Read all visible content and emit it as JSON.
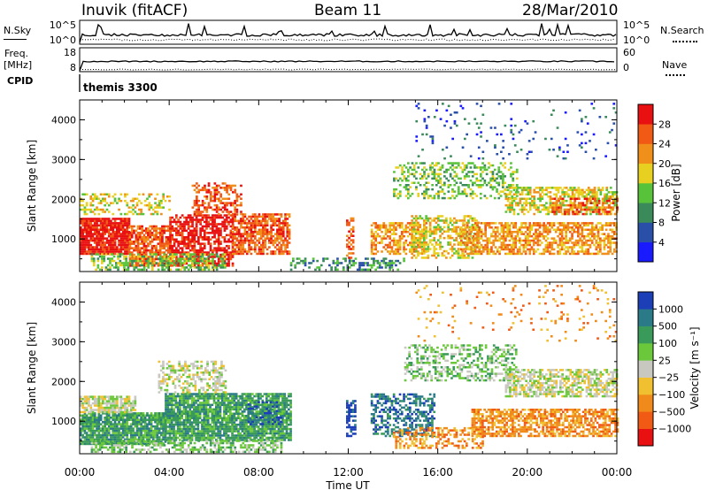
{
  "header": {
    "station": "Inuvik (fitACF)",
    "beam": "Beam 11",
    "date": "28/Mar/2010"
  },
  "strips": {
    "nsky_label": "N.Sky",
    "nsky_ticks": [
      "10^5",
      "10^0"
    ],
    "nsearch_label": "N.Search",
    "nsearch_ticks": [
      "10^5",
      "10^0"
    ],
    "freq_label": "Freq.",
    "freq_unit": "[MHz]",
    "freq_ticks": [
      "18",
      "8"
    ],
    "nave_label": "Nave",
    "nave_ticks": [
      "60",
      "0"
    ],
    "cpid_label": "CPID",
    "cpid_value": "themis 3300"
  },
  "chart_data": [
    {
      "type": "heatmap",
      "title": "",
      "xlabel": "Time UT",
      "ylabel": "Slant Range [km]",
      "xlim": [
        0,
        24
      ],
      "ylim": [
        180,
        4500
      ],
      "x_tick_labels": [
        "00:00",
        "04:00",
        "08:00",
        "12:00",
        "16:00",
        "20:00",
        "00:00"
      ],
      "x_tick_values": [
        0,
        4,
        8,
        12,
        16,
        20,
        24
      ],
      "y_tick_values": [
        1000,
        2000,
        3000,
        4000
      ],
      "colorbar": {
        "label": "Power [dB]",
        "levels": [
          4,
          8,
          12,
          16,
          20,
          24,
          28
        ],
        "colors": [
          "#1a1aff",
          "#2a4fa8",
          "#3a8a5a",
          "#58c33a",
          "#e8d020",
          "#f0901a",
          "#f05a14",
          "#e81010"
        ],
        "ticks": [
          "4",
          "8",
          "12",
          "16",
          "20",
          "24",
          "28"
        ]
      },
      "regions": [
        {
          "t": [
            0.0,
            2.2
          ],
          "r": [
            600,
            1500
          ],
          "level": 7,
          "density": 0.9
        },
        {
          "t": [
            2.2,
            4.0
          ],
          "r": [
            300,
            1300
          ],
          "level": 6,
          "density": 0.75
        },
        {
          "t": [
            4.0,
            6.8
          ],
          "r": [
            300,
            1600
          ],
          "level": 7,
          "density": 0.7
        },
        {
          "t": [
            5.0,
            7.2
          ],
          "r": [
            1600,
            2400
          ],
          "level": 6,
          "density": 0.45
        },
        {
          "t": [
            6.8,
            9.4
          ],
          "r": [
            600,
            1600
          ],
          "level": 6,
          "density": 0.7
        },
        {
          "t": [
            0.0,
            4.0
          ],
          "r": [
            1600,
            2100
          ],
          "level": 4,
          "density": 0.35
        },
        {
          "t": [
            0.5,
            6.5
          ],
          "r": [
            200,
            600
          ],
          "level": 3,
          "density": 0.5
        },
        {
          "t": [
            9.4,
            14.5
          ],
          "r": [
            200,
            500
          ],
          "level": 2,
          "density": 0.35
        },
        {
          "t": [
            11.9,
            12.2
          ],
          "r": [
            500,
            1500
          ],
          "level": 6,
          "density": 0.5
        },
        {
          "t": [
            13.0,
            15.5
          ],
          "r": [
            600,
            1400
          ],
          "level": 5,
          "density": 0.55
        },
        {
          "t": [
            14.8,
            17.8
          ],
          "r": [
            500,
            1600
          ],
          "level": 4,
          "density": 0.5
        },
        {
          "t": [
            14.0,
            19.5
          ],
          "r": [
            2000,
            2900
          ],
          "level": 3,
          "density": 0.35
        },
        {
          "t": [
            17.0,
            24.0
          ],
          "r": [
            600,
            1400
          ],
          "level": 5,
          "density": 0.6
        },
        {
          "t": [
            19.0,
            24.0
          ],
          "r": [
            1600,
            2300
          ],
          "level": 4,
          "density": 0.55
        },
        {
          "t": [
            21.0,
            24.0
          ],
          "r": [
            1600,
            2000
          ],
          "level": 6,
          "density": 0.45
        },
        {
          "t": [
            15.0,
            24.0
          ],
          "r": [
            3000,
            4400
          ],
          "level": 1,
          "density": 0.05
        }
      ]
    },
    {
      "type": "heatmap",
      "title": "",
      "xlabel": "Time UT",
      "ylabel": "Slant Range [km]",
      "xlim": [
        0,
        24
      ],
      "ylim": [
        180,
        4500
      ],
      "x_tick_labels": [
        "00:00",
        "04:00",
        "08:00",
        "12:00",
        "16:00",
        "20:00",
        "00:00"
      ],
      "x_tick_values": [
        0,
        4,
        8,
        12,
        16,
        20,
        24
      ],
      "y_tick_values": [
        1000,
        2000,
        3000,
        4000
      ],
      "colorbar": {
        "label": "Velocity [m s⁻¹]",
        "levels": [
          1000,
          500,
          100,
          25,
          -25,
          -100,
          -500,
          -1000
        ],
        "colors": [
          "#1c3fb8",
          "#2a7a88",
          "#3a9a5a",
          "#6ac83a",
          "#c8c8c0",
          "#f0c030",
          "#f08a1a",
          "#f05a14",
          "#e81010"
        ],
        "ticks": [
          "1000",
          "500",
          "100",
          "25",
          "−25",
          "−100",
          "−500",
          "−1000"
        ]
      },
      "regions": [
        {
          "t": [
            0.0,
            3.8
          ],
          "r": [
            400,
            1200
          ],
          "level": 2,
          "density": 0.85
        },
        {
          "t": [
            0.0,
            2.5
          ],
          "r": [
            1200,
            1600
          ],
          "level": 4,
          "density": 0.75
        },
        {
          "t": [
            3.8,
            9.4
          ],
          "r": [
            500,
            1700
          ],
          "level": 2,
          "density": 0.85
        },
        {
          "t": [
            3.5,
            6.5
          ],
          "r": [
            1700,
            2500
          ],
          "level": 4,
          "density": 0.45
        },
        {
          "t": [
            0.5,
            9.0
          ],
          "r": [
            200,
            500
          ],
          "level": 3,
          "density": 0.5
        },
        {
          "t": [
            7.5,
            9.0
          ],
          "r": [
            900,
            1500
          ],
          "level": 0,
          "density": 0.3
        },
        {
          "t": [
            11.9,
            12.3
          ],
          "r": [
            600,
            1500
          ],
          "level": 0,
          "density": 0.6
        },
        {
          "t": [
            13.0,
            15.8
          ],
          "r": [
            600,
            1700
          ],
          "level": 1,
          "density": 0.5
        },
        {
          "t": [
            14.0,
            18.0
          ],
          "r": [
            300,
            800
          ],
          "level": 6,
          "density": 0.45
        },
        {
          "t": [
            14.5,
            19.5
          ],
          "r": [
            2000,
            2900
          ],
          "level": 3,
          "density": 0.4
        },
        {
          "t": [
            17.5,
            24.0
          ],
          "r": [
            600,
            1300
          ],
          "level": 6,
          "density": 0.65
        },
        {
          "t": [
            19.0,
            24.0
          ],
          "r": [
            1600,
            2300
          ],
          "level": 4,
          "density": 0.6
        },
        {
          "t": [
            15.0,
            24.0
          ],
          "r": [
            3000,
            4400
          ],
          "level": 6,
          "density": 0.05
        }
      ]
    }
  ]
}
